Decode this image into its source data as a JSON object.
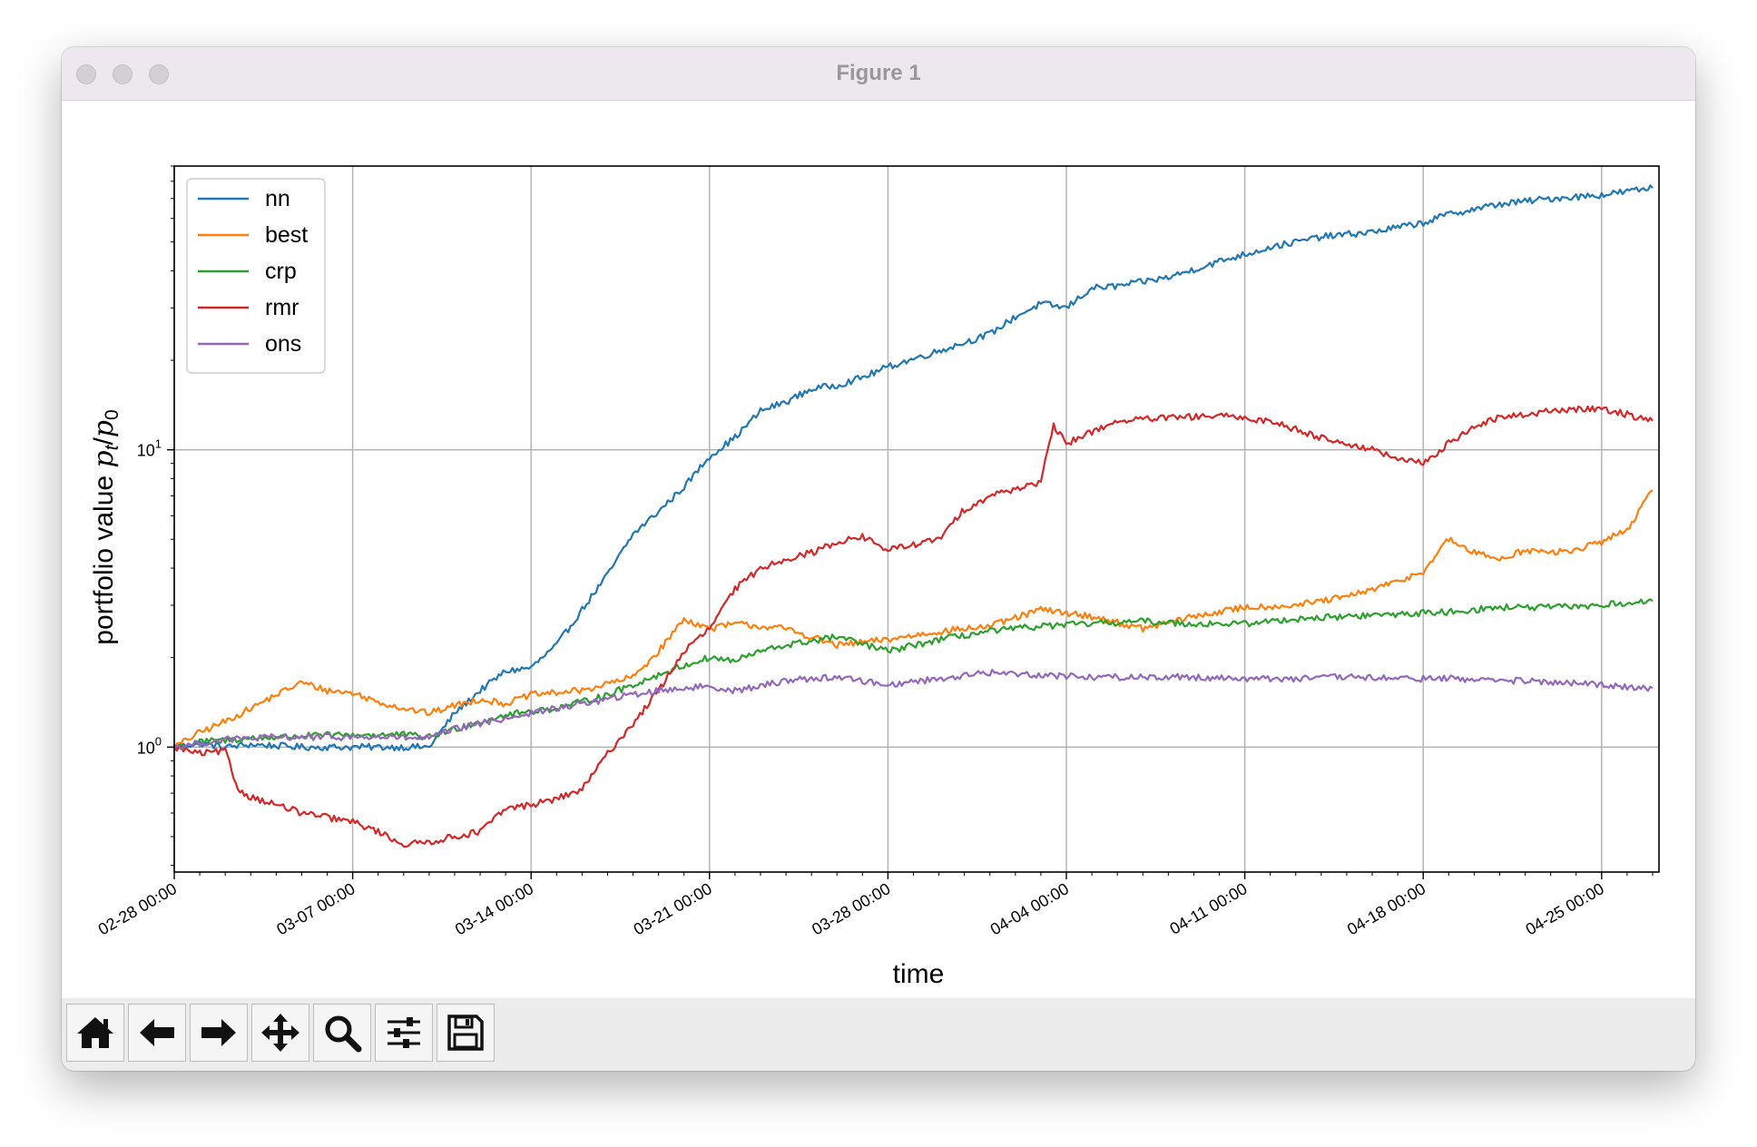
{
  "window": {
    "title": "Figure 1"
  },
  "toolbar": {
    "buttons": [
      {
        "name": "home-icon"
      },
      {
        "name": "back-arrow-icon"
      },
      {
        "name": "forward-arrow-icon"
      },
      {
        "name": "pan-icon"
      },
      {
        "name": "zoom-icon"
      },
      {
        "name": "configure-subplots-icon"
      },
      {
        "name": "save-icon"
      }
    ]
  },
  "chart_data": {
    "type": "line",
    "title": "",
    "xlabel": "time",
    "ylabel_main": "portfolio value ",
    "ylabel_math": "p",
    "ylabel_sub_t": "t",
    "ylabel_slash": "/",
    "ylabel_sub_0": "0",
    "yscale": "log",
    "ylim": [
      0.38,
      90
    ],
    "xlim": [
      "2018-02-28 00:00",
      "2018-04-27 06:00"
    ],
    "grid": true,
    "legend_position": "top-left",
    "ytick_base": "10",
    "yticks": [
      {
        "value": 1,
        "exp": "0"
      },
      {
        "value": 10,
        "exp": "1"
      }
    ],
    "xticks": [
      {
        "date": "2018-02-28",
        "label": "02-28 00:00"
      },
      {
        "date": "2018-03-07",
        "label": "03-07 00:00"
      },
      {
        "date": "2018-03-14",
        "label": "03-14 00:00"
      },
      {
        "date": "2018-03-21",
        "label": "03-21 00:00"
      },
      {
        "date": "2018-03-28",
        "label": "03-28 00:00"
      },
      {
        "date": "2018-04-04",
        "label": "04-04 00:00"
      },
      {
        "date": "2018-04-11",
        "label": "04-11 00:00"
      },
      {
        "date": "2018-04-18",
        "label": "04-18 00:00"
      },
      {
        "date": "2018-04-25",
        "label": "04-25 00:00"
      }
    ],
    "series": [
      {
        "name": "nn",
        "color": "#1f77b4",
        "x": [
          "2018-02-28",
          "2018-03-01",
          "2018-03-02",
          "2018-03-03",
          "2018-03-05",
          "2018-03-07",
          "2018-03-09",
          "2018-03-10",
          "2018-03-11",
          "2018-03-12",
          "2018-03-13",
          "2018-03-14",
          "2018-03-15",
          "2018-03-16",
          "2018-03-17",
          "2018-03-18",
          "2018-03-19",
          "2018-03-20",
          "2018-03-21",
          "2018-03-22",
          "2018-03-23",
          "2018-03-24",
          "2018-03-25",
          "2018-03-26",
          "2018-03-27",
          "2018-03-28",
          "2018-03-30",
          "2018-04-01",
          "2018-04-02",
          "2018-04-03",
          "2018-04-04",
          "2018-04-05",
          "2018-04-06",
          "2018-04-08",
          "2018-04-10",
          "2018-04-12",
          "2018-04-14",
          "2018-04-16",
          "2018-04-18",
          "2018-04-19",
          "2018-04-21",
          "2018-04-23",
          "2018-04-25",
          "2018-04-27"
        ],
        "y": [
          1.0,
          1.03,
          1.0,
          1.02,
          1.0,
          1.0,
          1.0,
          1.0,
          1.3,
          1.55,
          1.8,
          1.85,
          2.2,
          2.9,
          3.8,
          5.2,
          6.2,
          7.5,
          9.5,
          11.0,
          13.5,
          14.5,
          16.0,
          16.5,
          17.5,
          19.0,
          21.5,
          24.5,
          28.0,
          31.0,
          30.0,
          35.0,
          35.5,
          38.0,
          43.0,
          48.0,
          52.0,
          54.0,
          58.0,
          62.0,
          67.0,
          70.0,
          72.0,
          76.0
        ]
      },
      {
        "name": "best",
        "color": "#ff7f0e",
        "x": [
          "2018-02-28",
          "2018-03-01",
          "2018-03-02",
          "2018-03-03",
          "2018-03-04",
          "2018-03-05",
          "2018-03-06",
          "2018-03-07",
          "2018-03-08",
          "2018-03-09",
          "2018-03-10",
          "2018-03-11",
          "2018-03-12",
          "2018-03-13",
          "2018-03-14",
          "2018-03-16",
          "2018-03-18",
          "2018-03-19",
          "2018-03-20",
          "2018-03-21",
          "2018-03-22",
          "2018-03-24",
          "2018-03-26",
          "2018-03-28",
          "2018-03-30",
          "2018-04-01",
          "2018-04-03",
          "2018-04-05",
          "2018-04-07",
          "2018-04-09",
          "2018-04-11",
          "2018-04-13",
          "2018-04-15",
          "2018-04-17",
          "2018-04-18",
          "2018-04-19",
          "2018-04-20",
          "2018-04-21",
          "2018-04-22",
          "2018-04-23",
          "2018-04-24",
          "2018-04-25",
          "2018-04-26",
          "2018-04-27"
        ],
        "y": [
          1.0,
          1.12,
          1.22,
          1.35,
          1.5,
          1.65,
          1.55,
          1.52,
          1.42,
          1.35,
          1.3,
          1.38,
          1.45,
          1.4,
          1.5,
          1.55,
          1.72,
          2.1,
          2.7,
          2.5,
          2.6,
          2.5,
          2.2,
          2.3,
          2.45,
          2.55,
          2.9,
          2.75,
          2.5,
          2.75,
          2.95,
          3.0,
          3.2,
          3.6,
          3.9,
          5.0,
          4.5,
          4.3,
          4.6,
          4.5,
          4.6,
          4.9,
          5.4,
          7.3
        ]
      },
      {
        "name": "crp",
        "color": "#2ca02c",
        "x": [
          "2018-02-28",
          "2018-03-01",
          "2018-03-03",
          "2018-03-05",
          "2018-03-07",
          "2018-03-09",
          "2018-03-10",
          "2018-03-11",
          "2018-03-12",
          "2018-03-13",
          "2018-03-14",
          "2018-03-15",
          "2018-03-16",
          "2018-03-17",
          "2018-03-18",
          "2018-03-19",
          "2018-03-20",
          "2018-03-21",
          "2018-03-22",
          "2018-03-23",
          "2018-03-24",
          "2018-03-26",
          "2018-03-28",
          "2018-03-30",
          "2018-04-01",
          "2018-04-03",
          "2018-04-05",
          "2018-04-07",
          "2018-04-09",
          "2018-04-11",
          "2018-04-13",
          "2018-04-15",
          "2018-04-17",
          "2018-04-19",
          "2018-04-21",
          "2018-04-23",
          "2018-04-25",
          "2018-04-27"
        ],
        "y": [
          1.0,
          1.04,
          1.07,
          1.09,
          1.1,
          1.1,
          1.08,
          1.15,
          1.22,
          1.28,
          1.32,
          1.35,
          1.42,
          1.5,
          1.62,
          1.75,
          1.88,
          2.0,
          1.95,
          2.1,
          2.2,
          2.35,
          2.1,
          2.3,
          2.45,
          2.55,
          2.6,
          2.65,
          2.6,
          2.6,
          2.7,
          2.75,
          2.8,
          2.85,
          2.95,
          2.95,
          3.0,
          3.1
        ]
      },
      {
        "name": "rmr",
        "color": "#d62728",
        "x": [
          "2018-02-28",
          "2018-03-01",
          "2018-03-02",
          "2018-03-02 12:00",
          "2018-03-03",
          "2018-03-04",
          "2018-03-05",
          "2018-03-06",
          "2018-03-07",
          "2018-03-08",
          "2018-03-09",
          "2018-03-10",
          "2018-03-11",
          "2018-03-12",
          "2018-03-13",
          "2018-03-14",
          "2018-03-15",
          "2018-03-16",
          "2018-03-17",
          "2018-03-18",
          "2018-03-19",
          "2018-03-20",
          "2018-03-21",
          "2018-03-22",
          "2018-03-23",
          "2018-03-24",
          "2018-03-25",
          "2018-03-26",
          "2018-03-27",
          "2018-03-28",
          "2018-03-30",
          "2018-03-31",
          "2018-04-01",
          "2018-04-02",
          "2018-04-03",
          "2018-04-03 12:00",
          "2018-04-04",
          "2018-04-05",
          "2018-04-06",
          "2018-04-08",
          "2018-04-10",
          "2018-04-12",
          "2018-04-14",
          "2018-04-16",
          "2018-04-17",
          "2018-04-18",
          "2018-04-19",
          "2018-04-20",
          "2018-04-21",
          "2018-04-23",
          "2018-04-25",
          "2018-04-27"
        ],
        "y": [
          1.0,
          0.95,
          0.97,
          0.72,
          0.68,
          0.64,
          0.6,
          0.58,
          0.56,
          0.52,
          0.47,
          0.48,
          0.5,
          0.52,
          0.62,
          0.64,
          0.67,
          0.72,
          0.95,
          1.2,
          1.55,
          2.1,
          2.5,
          3.4,
          4.0,
          4.3,
          4.5,
          4.9,
          5.1,
          4.6,
          5.0,
          6.3,
          7.0,
          7.4,
          7.8,
          12.0,
          10.5,
          11.5,
          12.5,
          12.8,
          13.0,
          12.5,
          11.0,
          10.0,
          9.3,
          9.0,
          10.5,
          12.0,
          12.8,
          13.5,
          13.8,
          12.5
        ]
      },
      {
        "name": "ons",
        "color": "#9467bd",
        "x": [
          "2018-02-28",
          "2018-03-02",
          "2018-03-04",
          "2018-03-06",
          "2018-03-08",
          "2018-03-10",
          "2018-03-11",
          "2018-03-12",
          "2018-03-13",
          "2018-03-14",
          "2018-03-15",
          "2018-03-16",
          "2018-03-17",
          "2018-03-18",
          "2018-03-19",
          "2018-03-20",
          "2018-03-21",
          "2018-03-22",
          "2018-03-23",
          "2018-03-24",
          "2018-03-26",
          "2018-03-28",
          "2018-03-30",
          "2018-04-01",
          "2018-04-03",
          "2018-04-05",
          "2018-04-07",
          "2018-04-09",
          "2018-04-11",
          "2018-04-13",
          "2018-04-15",
          "2018-04-17",
          "2018-04-19",
          "2018-04-21",
          "2018-04-23",
          "2018-04-25",
          "2018-04-27"
        ],
        "y": [
          1.0,
          1.06,
          1.08,
          1.08,
          1.08,
          1.07,
          1.15,
          1.2,
          1.25,
          1.3,
          1.35,
          1.4,
          1.45,
          1.5,
          1.55,
          1.58,
          1.6,
          1.55,
          1.6,
          1.68,
          1.72,
          1.62,
          1.7,
          1.78,
          1.75,
          1.72,
          1.72,
          1.72,
          1.7,
          1.7,
          1.72,
          1.7,
          1.7,
          1.68,
          1.65,
          1.62,
          1.58
        ]
      }
    ]
  }
}
